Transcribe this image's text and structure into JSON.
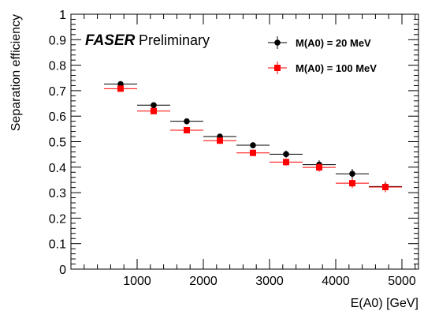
{
  "chart_data": {
    "type": "scatter",
    "title": "",
    "annotation": {
      "bold": "FASER",
      "normal": "Preliminary"
    },
    "xlabel": "E(A0) [GeV]",
    "ylabel": "Separation efficiency",
    "xlim": [
      0,
      5250
    ],
    "ylim": [
      0,
      1
    ],
    "xticks": [
      1000,
      2000,
      3000,
      4000,
      5000
    ],
    "yticks": [
      0,
      0.1,
      0.2,
      0.3,
      0.4,
      0.5,
      0.6,
      0.7,
      0.8,
      0.9,
      1
    ],
    "ytick_labels": [
      "0",
      "0.1",
      "0.2",
      "0.3",
      "0.4",
      "0.5",
      "0.6",
      "0.7",
      "0.8",
      "0.9",
      "1"
    ],
    "xtick_labels": [
      "1000",
      "2000",
      "3000",
      "4000",
      "5000"
    ],
    "grid": false,
    "legend_position": "top-right",
    "series": [
      {
        "name": "M(A0) = 20 MeV",
        "color": "#000000",
        "marker": "circle",
        "x": [
          750,
          1250,
          1750,
          2250,
          2750,
          3250,
          3750,
          4250,
          4750
        ],
        "xerr": 250,
        "y": [
          0.726,
          0.643,
          0.58,
          0.52,
          0.486,
          0.451,
          0.41,
          0.374,
          0.324
        ],
        "yerr": [
          0.006,
          0.007,
          0.009,
          0.01,
          0.012,
          0.014,
          0.017,
          0.019,
          0.02
        ]
      },
      {
        "name": "M(A0) = 100 MeV",
        "color": "#ff0000",
        "marker": "square",
        "x": [
          750,
          1250,
          1750,
          2250,
          2750,
          3250,
          3750,
          4250,
          4750
        ],
        "xerr": 250,
        "y": [
          0.708,
          0.62,
          0.545,
          0.504,
          0.456,
          0.42,
          0.399,
          0.337,
          0.322
        ],
        "yerr": [
          0.006,
          0.007,
          0.009,
          0.01,
          0.012,
          0.014,
          0.017,
          0.019,
          0.02
        ]
      }
    ]
  }
}
